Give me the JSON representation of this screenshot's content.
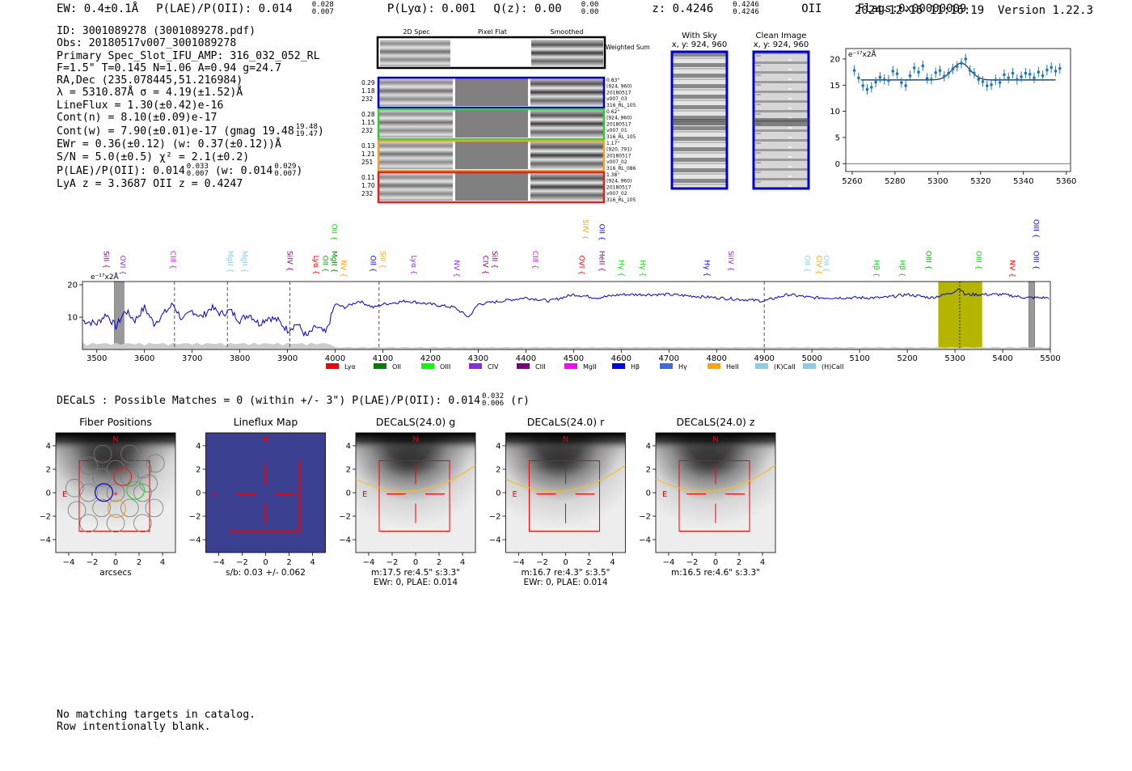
{
  "header": {
    "ew": "EW: 0.4±0.1Å",
    "plae": "P(LAE)/P(OII): 0.014",
    "plae_hi": "0.028",
    "plae_lo": "0.007",
    "plya": "P(Lyα): 0.001",
    "qz": "Q(z): 0.00",
    "qz_hi": "0.00",
    "qz_lo": "0.00",
    "z": "z: 0.4246",
    "z_hi": "0.4246",
    "z_lo": "0.4246",
    "line": "OII",
    "flags": "Flags:0x00000009",
    "datetime": "2024-12-16 11:16:19",
    "version": "Version 1.22.3"
  },
  "info": {
    "id": "ID: 3001089278 (3001089278.pdf)",
    "obs": "Obs: 20180517v007_3001089278",
    "primary": "Primary Spec_Slot_IFU_AMP: 316_032_052_RL",
    "fit": "F=1.5\"  T=0.145  N=1.06  A=0.94  g=24.7",
    "radec": "RA,Dec (235.078445,51.216984)",
    "lambda": "λ = 5310.87Å   σ = 4.19(±1.52)Å",
    "lineflux": "LineFlux = 1.30(±0.42)e-16",
    "contn": "Cont(n) = 8.10(±0.09)e-17",
    "contw": "Cont(w) = 7.90(±0.01)e-17 (gmag 19.48",
    "contw_hi": "19.48",
    "contw_lo": "19.47",
    "ewr": "EWr = 0.36(±0.12)  (w: 0.37(±0.12))Å",
    "sn": "S/N = 5.0(±0.5)  χ² = 2.1(±0.2)",
    "plae_a": "P(LAE)/P(OII): 0.014",
    "plae_a_hi": "0.033",
    "plae_a_lo": "0.007",
    "plae_b": "(w: 0.014",
    "plae_b_hi": "0.029",
    "plae_b_lo": "0.007",
    "lya": "LyA z = 3.3687  OII z = 0.4247"
  },
  "cutouts": {
    "col_headers": [
      "2D Spec",
      "Pixel Flat",
      "Smoothed"
    ],
    "weighted_sum": "Weighted Sum",
    "rows": [
      {
        "color": "#0000cc",
        "left": [
          "0.29",
          "1.18",
          "232"
        ],
        "right": [
          "0.83\"",
          "(924, 960)",
          "20180517",
          "v007_03",
          "316_RL_105"
        ]
      },
      {
        "color": "#33cc33",
        "left": [
          "0.28",
          "1.15",
          "232"
        ],
        "right": [
          "0.62\"",
          "(924, 960)",
          "20180517",
          "v007_01",
          "316_RL_105"
        ]
      },
      {
        "color": "#f0a030",
        "left": [
          "0.13",
          "1.21",
          "251"
        ],
        "right": [
          "1.17\"",
          "(920, 791)",
          "20180517",
          "v007_02",
          "316_RL_086"
        ]
      },
      {
        "color": "#dd2222",
        "left": [
          "0.11",
          "1.70",
          "232"
        ],
        "right": [
          "1.38\"",
          "(924, 960)",
          "20180517",
          "v007_02",
          "316_RL_105"
        ]
      }
    ],
    "with_sky_title": "With Sky",
    "with_sky_sub": "x, y: 924, 960",
    "clean_title": "Clean Image",
    "clean_sub": "x, y: 924, 960"
  },
  "zoom_chart": {
    "type": "scatter",
    "unit_label": "e⁻¹⁷x2Å",
    "xlim": [
      5257,
      5362
    ],
    "ylim": [
      -1.5,
      22
    ],
    "xticks": [
      5260,
      5280,
      5300,
      5320,
      5340,
      5360
    ],
    "yticks": [
      0,
      5,
      10,
      15,
      20
    ],
    "points": [
      [
        5261,
        17.8
      ],
      [
        5263,
        16.4
      ],
      [
        5265,
        14.9
      ],
      [
        5267,
        14.2
      ],
      [
        5269,
        14.6
      ],
      [
        5271,
        15.6
      ],
      [
        5273,
        16.5
      ],
      [
        5275,
        16.1
      ],
      [
        5277,
        15.9
      ],
      [
        5279,
        17.7
      ],
      [
        5281,
        17.2
      ],
      [
        5283,
        15.5
      ],
      [
        5285,
        14.9
      ],
      [
        5287,
        16.8
      ],
      [
        5289,
        18.3
      ],
      [
        5291,
        17.5
      ],
      [
        5293,
        18.7
      ],
      [
        5295,
        16.3
      ],
      [
        5297,
        16.1
      ],
      [
        5299,
        17.4
      ],
      [
        5301,
        17.8
      ],
      [
        5303,
        16.7
      ],
      [
        5305,
        17.3
      ],
      [
        5307,
        18.1
      ],
      [
        5309,
        18.6
      ],
      [
        5311,
        19.2
      ],
      [
        5313,
        20.0
      ],
      [
        5315,
        17.8
      ],
      [
        5317,
        17.3
      ],
      [
        5319,
        16.1
      ],
      [
        5321,
        15.7
      ],
      [
        5323,
        14.9
      ],
      [
        5325,
        15.1
      ],
      [
        5327,
        16.0
      ],
      [
        5329,
        15.5
      ],
      [
        5331,
        17.0
      ],
      [
        5333,
        16.4
      ],
      [
        5335,
        17.3
      ],
      [
        5337,
        16.1
      ],
      [
        5339,
        16.6
      ],
      [
        5341,
        17.3
      ],
      [
        5343,
        17.1
      ],
      [
        5345,
        16.4
      ],
      [
        5347,
        17.5
      ],
      [
        5349,
        16.8
      ],
      [
        5351,
        17.9
      ],
      [
        5353,
        18.4
      ],
      [
        5355,
        17.7
      ],
      [
        5357,
        18.2
      ]
    ],
    "fit_baseline": 16.0,
    "fit_peak": 3.2,
    "fit_center": 5310.87,
    "fit_sigma": 4.19
  },
  "chart_data": {
    "type": "line",
    "xlabel": "",
    "ylabel": "e⁻¹⁷x2Å",
    "xlim": [
      3470,
      5500
    ],
    "ylim": [
      0,
      21
    ],
    "xticks": [
      3500,
      3600,
      3700,
      3800,
      3900,
      4000,
      4100,
      4200,
      4300,
      4400,
      4500,
      4600,
      4700,
      4800,
      4900,
      5000,
      5100,
      5200,
      5300,
      5400,
      5500
    ],
    "yticks": [
      10,
      20
    ],
    "dashed_lines": [
      3663,
      3774,
      3905,
      4092,
      4900,
      5310
    ],
    "highlight": {
      "from": 5265,
      "to": 5357,
      "color": "#b5b500"
    },
    "masked": [
      [
        3537,
        3557
      ],
      [
        5455,
        5467
      ]
    ],
    "series": [
      {
        "name": "spectrum",
        "color": "#0000cc",
        "points": [
          [
            3470,
            9
          ],
          [
            3500,
            8
          ],
          [
            3520,
            11
          ],
          [
            3540,
            7
          ],
          [
            3560,
            12
          ],
          [
            3580,
            9
          ],
          [
            3600,
            13
          ],
          [
            3620,
            8
          ],
          [
            3640,
            11
          ],
          [
            3660,
            14
          ],
          [
            3680,
            9
          ],
          [
            3700,
            12
          ],
          [
            3720,
            10
          ],
          [
            3740,
            13
          ],
          [
            3760,
            11
          ],
          [
            3780,
            12
          ],
          [
            3800,
            9
          ],
          [
            3820,
            11
          ],
          [
            3840,
            8
          ],
          [
            3860,
            10
          ],
          [
            3880,
            9
          ],
          [
            3900,
            6
          ],
          [
            3920,
            8
          ],
          [
            3940,
            4
          ],
          [
            3960,
            7
          ],
          [
            3980,
            5
          ],
          [
            4000,
            14
          ],
          [
            4020,
            13
          ],
          [
            4050,
            15
          ],
          [
            4080,
            13
          ],
          [
            4100,
            14
          ],
          [
            4150,
            15
          ],
          [
            4200,
            14
          ],
          [
            4250,
            13
          ],
          [
            4280,
            10
          ],
          [
            4300,
            14
          ],
          [
            4350,
            15
          ],
          [
            4400,
            16
          ],
          [
            4450,
            15
          ],
          [
            4500,
            17
          ],
          [
            4550,
            16
          ],
          [
            4600,
            17
          ],
          [
            4700,
            17
          ],
          [
            4800,
            16
          ],
          [
            4900,
            15
          ],
          [
            4950,
            17
          ],
          [
            5000,
            16
          ],
          [
            5050,
            16
          ],
          [
            5100,
            16
          ],
          [
            5150,
            16
          ],
          [
            5200,
            17
          ],
          [
            5250,
            16
          ],
          [
            5280,
            17
          ],
          [
            5300,
            18
          ],
          [
            5310,
            19
          ],
          [
            5320,
            17
          ],
          [
            5350,
            17
          ],
          [
            5400,
            17
          ],
          [
            5450,
            16
          ],
          [
            5500,
            16
          ]
        ]
      }
    ],
    "legend": [
      {
        "label": "Lyα",
        "color": "#ff0000"
      },
      {
        "label": "OII",
        "color": "#008000"
      },
      {
        "label": "OIII",
        "color": "#00ff00"
      },
      {
        "label": "CIV",
        "color": "#8a2be2"
      },
      {
        "label": "CIII",
        "color": "#800080"
      },
      {
        "label": "MgII",
        "color": "#ff00ff"
      },
      {
        "label": "Hβ",
        "color": "#0000ff"
      },
      {
        "label": "Hγ",
        "color": "#4169e1"
      },
      {
        "label": "HeII",
        "color": "#ffa500"
      },
      {
        "label": "(K)CaII",
        "color": "#87ceeb"
      },
      {
        "label": "(H)CaII",
        "color": "#87ceeb"
      }
    ],
    "line_labels": [
      {
        "label": "SiII",
        "x": 3520,
        "color": "#800080",
        "row": 2
      },
      {
        "label": "OVI",
        "x": 3555,
        "color": "#8a2be2",
        "row": 2
      },
      {
        "label": "CIII",
        "x": 3660,
        "color": "#ff00ff",
        "row": 2
      },
      {
        "label": "MgII",
        "x": 3780,
        "color": "#87ceeb",
        "row": 2
      },
      {
        "label": "MgII",
        "x": 3810,
        "color": "#87ceeb",
        "row": 2
      },
      {
        "label": "SiIV",
        "x": 3905,
        "color": "#800080",
        "row": 2
      },
      {
        "label": "Lyα",
        "x": 3960,
        "color": "#ff0000",
        "row": 2
      },
      {
        "label": "OII",
        "x": 3980,
        "color": "#00aa00",
        "row": 2
      },
      {
        "label": "MgII",
        "x": 3998,
        "color": "#008000",
        "row": 2
      },
      {
        "label": "NV",
        "x": 4018,
        "color": "#ffa500",
        "row": 2
      },
      {
        "label": "OII",
        "x": 3998,
        "color": "#00dd00",
        "row": 0
      },
      {
        "label": "OII",
        "x": 4080,
        "color": "#0000ff",
        "row": 2
      },
      {
        "label": "SiII",
        "x": 4100,
        "color": "#ffa500",
        "row": 2
      },
      {
        "label": "Lyα",
        "x": 4165,
        "color": "#8a2be2",
        "row": 2
      },
      {
        "label": "NV",
        "x": 4255,
        "color": "#8a2be2",
        "row": 2
      },
      {
        "label": "CIV",
        "x": 4315,
        "color": "#800080",
        "row": 2
      },
      {
        "label": "SiII",
        "x": 4335,
        "color": "#800080",
        "row": 2
      },
      {
        "label": "CIII",
        "x": 4420,
        "color": "#ff00ff",
        "row": 2
      },
      {
        "label": "OVI",
        "x": 4517,
        "color": "#ff0000",
        "row": 2
      },
      {
        "label": "SiIV",
        "x": 4525,
        "color": "#ffa500",
        "row": 0
      },
      {
        "label": "HeII",
        "x": 4560,
        "color": "#800080",
        "row": 2
      },
      {
        "label": "OII",
        "x": 4560,
        "color": "#0000ff",
        "row": 0
      },
      {
        "label": "Hγ",
        "x": 4600,
        "color": "#00dd00",
        "row": 2
      },
      {
        "label": "Hγ",
        "x": 4645,
        "color": "#00dd00",
        "row": 2
      },
      {
        "label": "Hγ",
        "x": 4780,
        "color": "#0000ff",
        "row": 2
      },
      {
        "label": "SiIV",
        "x": 4830,
        "color": "#8a2be2",
        "row": 2
      },
      {
        "label": "OII",
        "x": 4990,
        "color": "#87ceeb",
        "row": 2
      },
      {
        "label": "CIV",
        "x": 5015,
        "color": "#ffa500",
        "row": 2
      },
      {
        "label": "OII",
        "x": 5030,
        "color": "#87ceeb",
        "row": 2
      },
      {
        "label": "Hβ",
        "x": 5135,
        "color": "#00dd00",
        "row": 2
      },
      {
        "label": "Hβ",
        "x": 5190,
        "color": "#00dd00",
        "row": 2
      },
      {
        "label": "OIII",
        "x": 5245,
        "color": "#00aa00",
        "row": 2
      },
      {
        "label": "OIII",
        "x": 5350,
        "color": "#00dd00",
        "row": 2
      },
      {
        "label": "NV",
        "x": 5420,
        "color": "#ff0000",
        "row": 2
      },
      {
        "label": "OIII",
        "x": 5470,
        "color": "#0000ff",
        "row": 2
      },
      {
        "label": "OIII",
        "x": 5470,
        "color": "#0000ff",
        "row": 0
      }
    ]
  },
  "decals": {
    "summary": "DECaLS : Possible Matches = 0 (within +/- 3\")  P(LAE)/P(OII): 0.014",
    "summary_hi": "0.032",
    "summary_lo": "0.006",
    "summary_band": "(r)",
    "panels": [
      {
        "title": "Fiber Positions",
        "caption": [
          "arcsecs"
        ],
        "kind": "fibers"
      },
      {
        "title": "Lineflux Map",
        "caption": [
          "s/b: 0.03 +/- 0.062"
        ],
        "kind": "lineflux"
      },
      {
        "title": "DECaLS(24.0) g",
        "caption": [
          "m:17.5  re:4.5\"  s:3.3\"",
          "EWr: 0, PLAE: 0.014"
        ],
        "kind": "image"
      },
      {
        "title": "DECaLS(24.0) r",
        "caption": [
          "m:16.7  re:4.3\"  s:3.5\"",
          "EWr: 0, PLAE: 0.014"
        ],
        "kind": "image"
      },
      {
        "title": "DECaLS(24.0) z",
        "caption": [
          "m:16.5  re:4.6\"  s:3.3\""
        ],
        "kind": "image"
      }
    ],
    "ticks": [
      "−4",
      "−2",
      "0",
      "2",
      "4"
    ],
    "north": "N",
    "east": "E"
  },
  "footer": {
    "line1": "No matching targets in catalog.",
    "line2": "Row intentionally blank."
  }
}
